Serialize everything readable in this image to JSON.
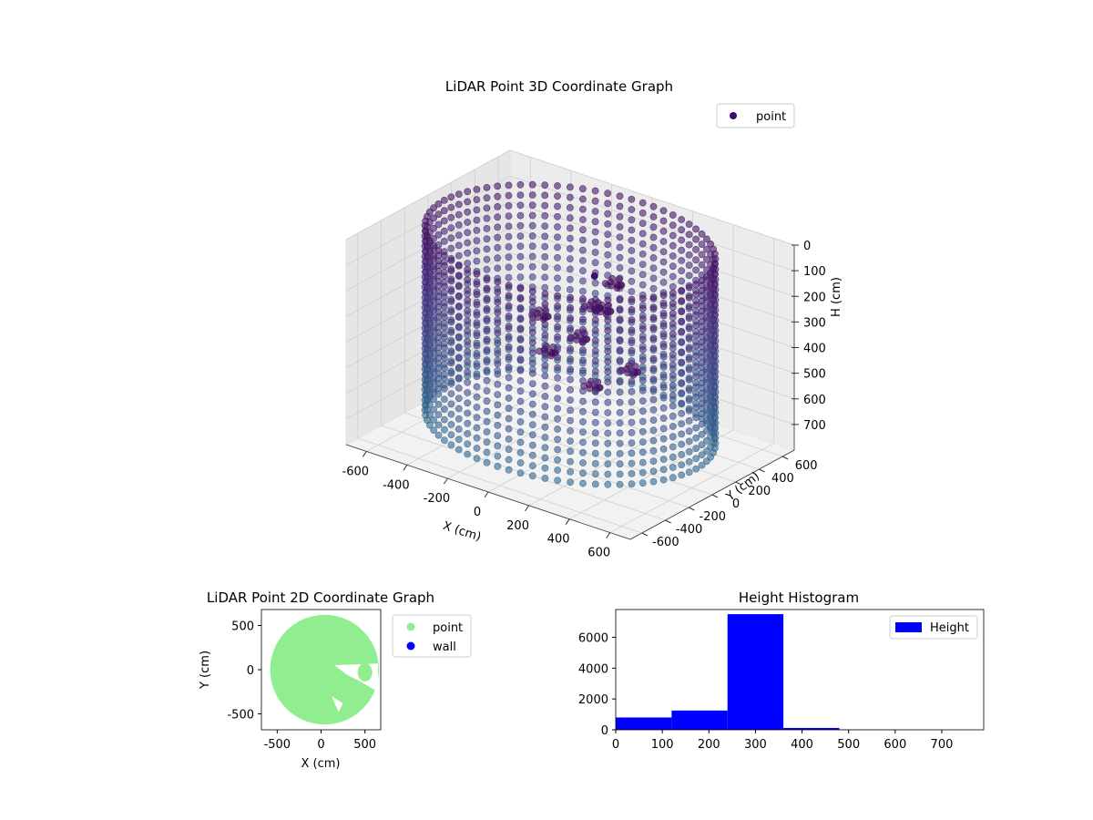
{
  "chart_data": [
    {
      "type": "scatter",
      "projection": "3d",
      "title": "LiDAR Point 3D Coordinate Graph",
      "xlabel": "X (cm)",
      "ylabel": "Y (cm)",
      "zlabel": "H (cm)",
      "xlim": [
        -700,
        700
      ],
      "ylim": [
        -700,
        700
      ],
      "zlim": [
        800,
        0
      ],
      "z_inverted": true,
      "x_ticks": [
        "-600",
        "-400",
        "-200",
        "0",
        "200",
        "400",
        "600"
      ],
      "y_ticks": [
        "-600",
        "-400",
        "-200",
        "0",
        "200",
        "400",
        "600"
      ],
      "z_ticks": [
        "0",
        "100",
        "200",
        "300",
        "400",
        "500",
        "600",
        "700"
      ],
      "grid": true,
      "legend": {
        "placement": "upper-right",
        "entries": [
          {
            "label": "point",
            "color": "#3b0f70"
          }
        ]
      },
      "colormap": "viridis (purple to teal)",
      "series": [
        {
          "name": "point",
          "description_shape": "cylindrical wall of points",
          "wall": {
            "radius": 620,
            "h_top": 0,
            "h_bottom": 720,
            "h_step": 20
          },
          "interior_blob": [
            {
              "x": 150,
              "y": 120,
              "h": 150
            },
            {
              "x": 120,
              "y": 80,
              "h": 250
            },
            {
              "x": 60,
              "y": -20,
              "h": 350
            },
            {
              "x": -60,
              "y": -80,
              "h": 420
            },
            {
              "x": 200,
              "y": -150,
              "h": 470
            },
            {
              "x": 300,
              "y": 0,
              "h": 420
            },
            {
              "x": -200,
              "y": 100,
              "h": 360
            },
            {
              "x": 0,
              "y": 200,
              "h": 300
            }
          ],
          "isolated_point": {
            "x": 120,
            "y": 0,
            "h": 100
          }
        }
      ]
    },
    {
      "type": "scatter",
      "title": "LiDAR Point 2D Coordinate Graph",
      "xlabel": "X (cm)",
      "ylabel": "Y (cm)",
      "xlim": [
        -680,
        680
      ],
      "ylim": [
        -680,
        680
      ],
      "x_ticks": [
        "-500",
        "0",
        "500"
      ],
      "y_ticks": [
        "-500",
        "0",
        "500"
      ],
      "grid": false,
      "legend": {
        "placement": "outside-right",
        "entries": [
          {
            "label": "point",
            "color": "#90ee90"
          },
          {
            "label": "wall",
            "color": "#0000ff"
          }
        ]
      },
      "series": [
        {
          "name": "point",
          "color": "#90ee90",
          "region": {
            "center_x": 40,
            "center_y": 0,
            "radius": 620
          }
        },
        {
          "name": "wall",
          "color": "#0000ff",
          "points": []
        }
      ]
    },
    {
      "type": "bar",
      "subtype": "histogram",
      "title": "Height Histogram",
      "xlabel": "",
      "ylabel": "",
      "xlim": [
        0,
        790
      ],
      "ylim": [
        0,
        7800
      ],
      "x_ticks": [
        "0",
        "100",
        "200",
        "300",
        "400",
        "500",
        "600",
        "700"
      ],
      "y_ticks": [
        "0",
        "2000",
        "4000",
        "6000"
      ],
      "legend": {
        "placement": "upper-right",
        "entries": [
          {
            "label": "Height",
            "color": "#0000ff"
          }
        ]
      },
      "color": "#0000ff",
      "bins": [
        {
          "start": 0,
          "end": 120,
          "count": 800
        },
        {
          "start": 120,
          "end": 240,
          "count": 1250
        },
        {
          "start": 240,
          "end": 360,
          "count": 7500
        },
        {
          "start": 360,
          "end": 480,
          "count": 120
        },
        {
          "start": 480,
          "end": 600,
          "count": 15
        },
        {
          "start": 600,
          "end": 720,
          "count": 5
        }
      ]
    }
  ]
}
